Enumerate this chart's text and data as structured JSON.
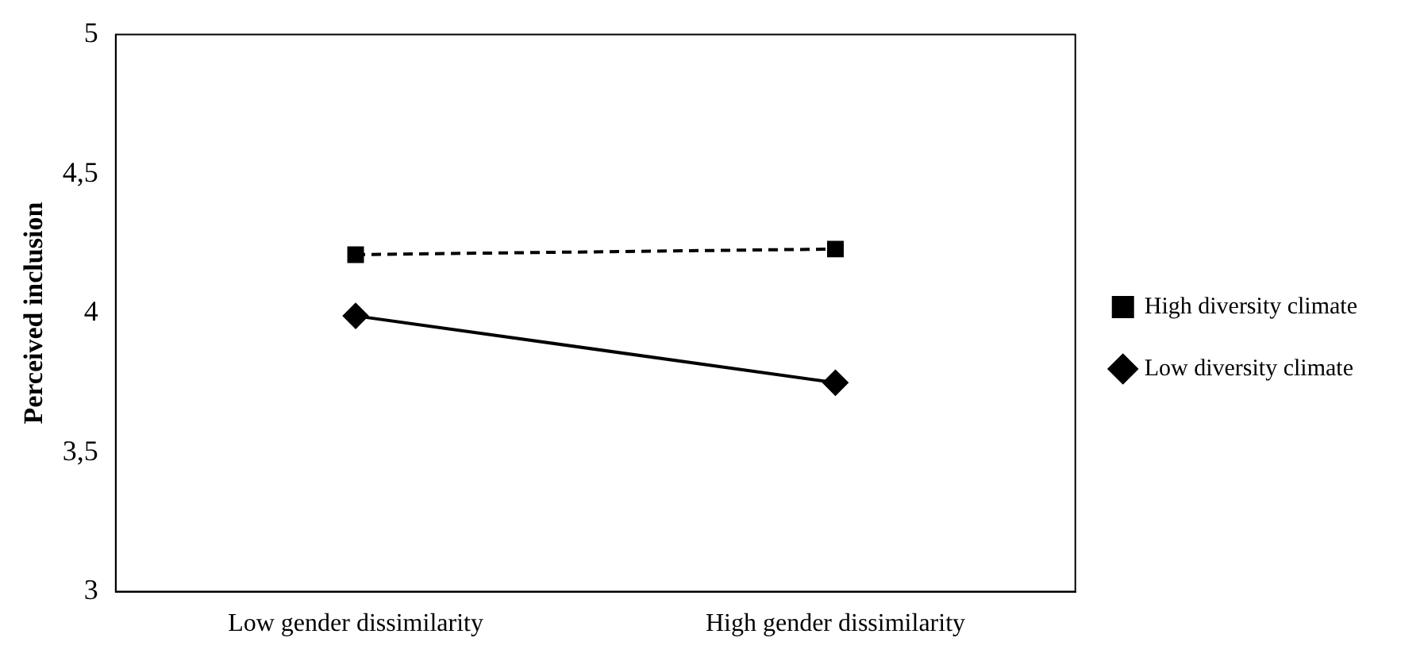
{
  "chart_data": {
    "type": "line",
    "ylabel": "Perceived inclusion",
    "categories": [
      "Low gender dissimilarity",
      "High gender dissimilarity"
    ],
    "series": [
      {
        "name": "High diversity climate",
        "color": "#000000",
        "values": [
          4.21,
          4.23
        ],
        "marker": "square",
        "line_style": "dashed"
      },
      {
        "name": "Low diversity climate",
        "color": "#000000",
        "values": [
          3.99,
          3.75
        ],
        "marker": "diamond",
        "line_style": "solid"
      }
    ],
    "ylim": [
      3,
      5
    ],
    "yticks": [
      3,
      {
        "value": 3.5,
        "label": "3,5"
      },
      4,
      {
        "value": 4.5,
        "label": "4,5"
      },
      5
    ],
    "grid": false,
    "legend": "right"
  }
}
